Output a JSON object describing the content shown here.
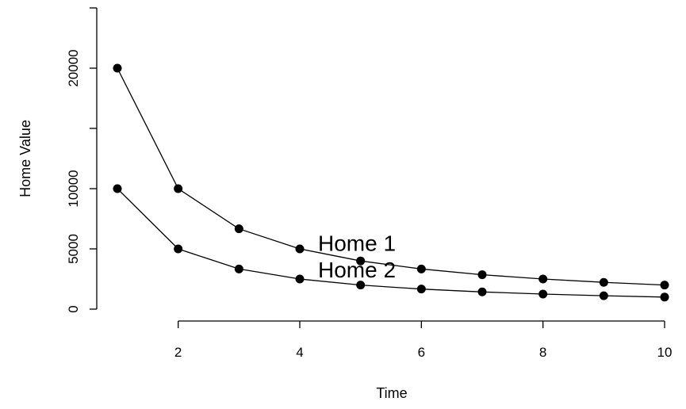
{
  "chart_data": {
    "type": "line",
    "xlabel": "Time",
    "ylabel": "Home Value",
    "xlim": [
      1,
      10
    ],
    "ylim": [
      0,
      20000
    ],
    "xticks": [
      2,
      4,
      6,
      8,
      10
    ],
    "yticks": [
      0,
      5000,
      10000,
      15000,
      20000
    ],
    "ytick_labels": [
      "0",
      "5000",
      "10000",
      "",
      "20000"
    ],
    "grid": false,
    "legend": "none",
    "series": [
      {
        "x": [
          1,
          2,
          3,
          4,
          5,
          6,
          7,
          8,
          9,
          10
        ],
        "values": [
          20000,
          10000,
          6667,
          5000,
          4000,
          3333,
          2857,
          2500,
          2222,
          2000
        ]
      },
      {
        "x": [
          1,
          2,
          3,
          4,
          5,
          6,
          7,
          8,
          9,
          10
        ],
        "values": [
          10000,
          5000,
          3333,
          2500,
          2000,
          1667,
          1429,
          1250,
          1111,
          1000
        ]
      }
    ],
    "annotations": [
      {
        "text": "Home 1",
        "x": 4.3,
        "y": 5500
      },
      {
        "text": "Home 2",
        "x": 4.3,
        "y": 3300
      }
    ]
  }
}
